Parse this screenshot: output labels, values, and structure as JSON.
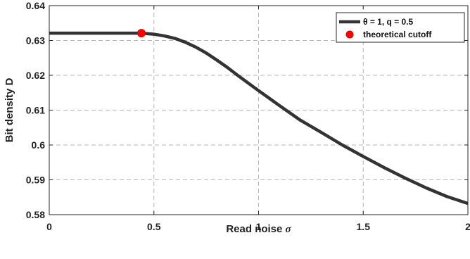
{
  "chart_data": {
    "type": "line",
    "xlabel": "Read noise",
    "xlabel_symbol": "σ",
    "ylabel": "Bit density D",
    "xlim": [
      0,
      2
    ],
    "ylim": [
      0.58,
      0.64
    ],
    "x_ticks": [
      0,
      0.5,
      1,
      1.5,
      2
    ],
    "x_tick_labels": [
      "0",
      "0.5",
      "1",
      "1.5",
      "2"
    ],
    "y_ticks": [
      0.58,
      0.59,
      0.6,
      0.61,
      0.62,
      0.63,
      0.64
    ],
    "y_tick_labels": [
      "0.58",
      "0.59",
      "0.6",
      "0.61",
      "0.62",
      "0.63",
      "0.64"
    ],
    "grid": true,
    "legend_position": "top-right",
    "series": [
      {
        "name": "θ = 1, q = 0.5",
        "color": "#333333",
        "x": [
          0,
          0.1,
          0.2,
          0.3,
          0.4,
          0.44,
          0.5,
          0.55,
          0.6,
          0.65,
          0.7,
          0.75,
          0.8,
          0.85,
          0.9,
          0.95,
          1.0,
          1.1,
          1.2,
          1.3,
          1.4,
          1.5,
          1.6,
          1.7,
          1.8,
          1.9,
          2.0
        ],
        "y": [
          0.6321,
          0.6321,
          0.6321,
          0.6321,
          0.6321,
          0.6321,
          0.6318,
          0.6313,
          0.6306,
          0.6295,
          0.6281,
          0.6264,
          0.6244,
          0.6223,
          0.62,
          0.6178,
          0.6156,
          0.6113,
          0.6071,
          0.6036,
          0.6,
          0.5967,
          0.5935,
          0.5905,
          0.5877,
          0.5852,
          0.5832
        ]
      }
    ],
    "markers": [
      {
        "name": "theoretical cutoff",
        "color": "#ff0000",
        "x": 0.44,
        "y": 0.6321
      }
    ]
  }
}
